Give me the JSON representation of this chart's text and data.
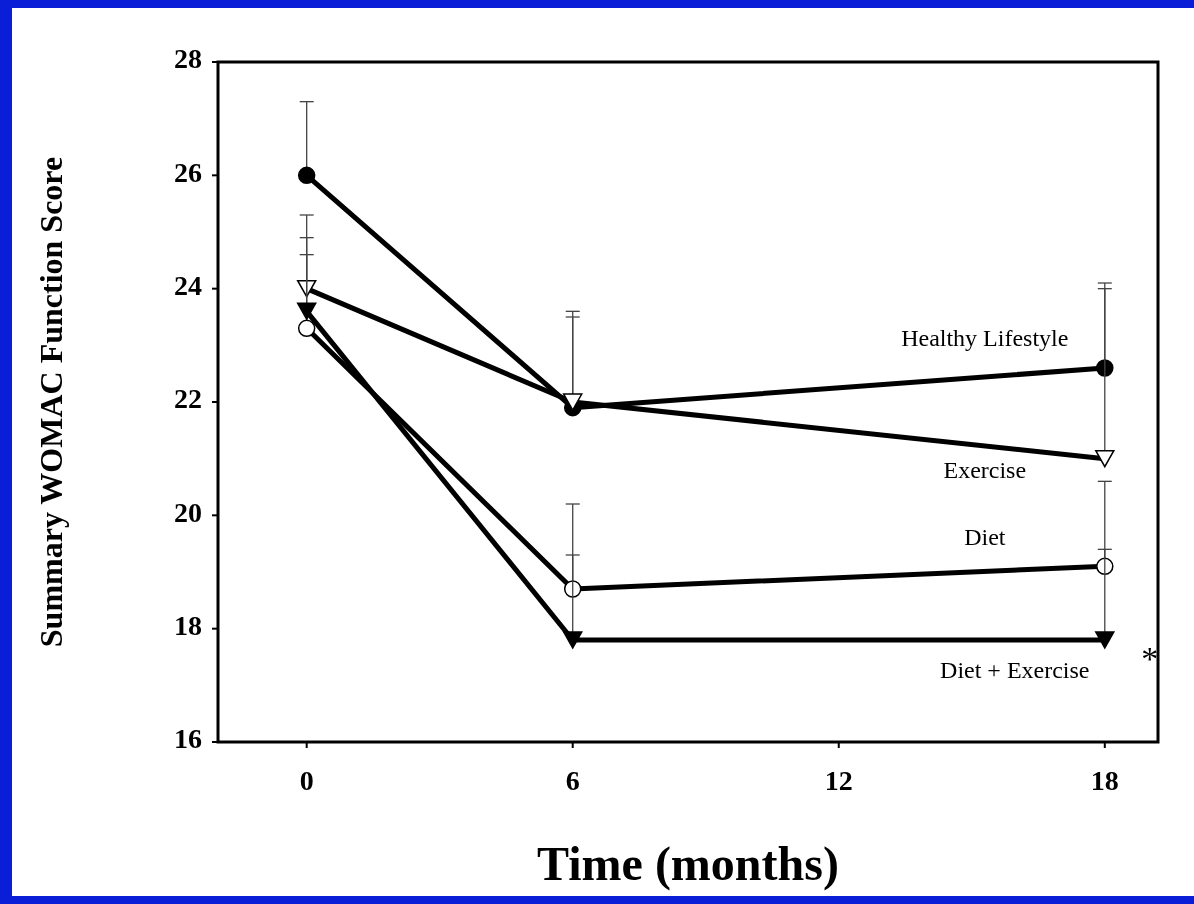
{
  "chart_data": {
    "type": "line",
    "xlabel": "Time (months)",
    "ylabel": "Summary WOMAC Function Score",
    "x": [
      0,
      6,
      18
    ],
    "xlim": [
      -2,
      19.2
    ],
    "xticks": [
      0,
      6,
      12,
      18
    ],
    "ylim": [
      16,
      28
    ],
    "yticks": [
      16,
      18,
      20,
      22,
      24,
      26,
      28
    ],
    "grid": false,
    "line_style": "solid",
    "series": [
      {
        "name": "Healthy Lifestyle",
        "color": "#000000",
        "marker": "circle",
        "values": [
          26.0,
          21.9,
          22.6
        ],
        "errors": [
          [
            26.0,
            27.3
          ],
          [
            21.9,
            23.5
          ],
          [
            22.6,
            24.1
          ]
        ]
      },
      {
        "name": "Exercise",
        "color": "#000000",
        "marker": "triangle-down",
        "values": [
          24.0,
          22.0,
          21.0
        ],
        "errors": [
          [
            24.0,
            25.3
          ],
          [
            22.0,
            23.6
          ],
          [
            21.0,
            24.0
          ]
        ]
      },
      {
        "name": "Diet",
        "color": "#000000",
        "marker": "circle",
        "values": [
          23.3,
          18.7,
          19.1
        ],
        "errors": [
          [
            23.3,
            24.6
          ],
          [
            18.7,
            19.3
          ],
          [
            19.1,
            19.4
          ]
        ]
      },
      {
        "name": "Diet + Exercise",
        "color": "#000000",
        "marker": "triangle-down",
        "values": [
          23.6,
          17.8,
          17.8
        ],
        "errors": [
          [
            23.6,
            24.9
          ],
          [
            17.8,
            20.2
          ],
          [
            17.8,
            20.6
          ]
        ]
      }
    ],
    "annotations": [
      {
        "text": "*",
        "x": 18,
        "y": 17.8
      }
    ]
  }
}
